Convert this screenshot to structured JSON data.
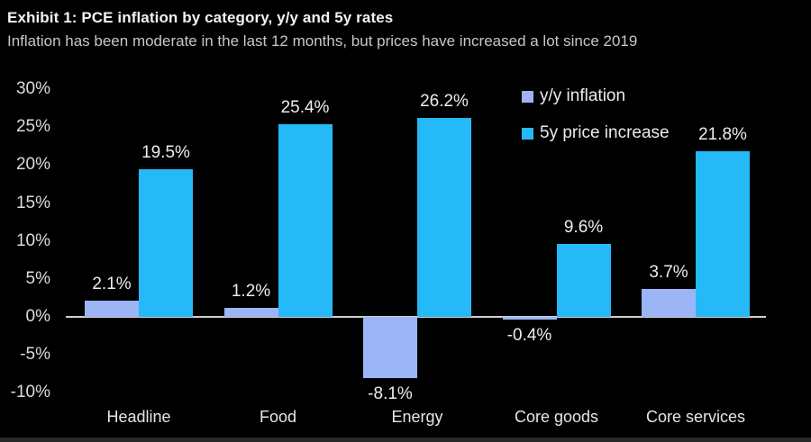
{
  "header": {
    "title": "Exhibit 1: PCE inflation by category, y/y and 5y rates",
    "subtitle": "Inflation has been moderate in the last 12 months, but prices have increased a lot since 2019"
  },
  "colors": {
    "background": "#000000",
    "yy_series": "#9cb5f7",
    "five_year_series": "#25b9f7",
    "axis_text": "#dcdcdc",
    "value_label_text": "#ededed",
    "zero_line": "#d0d0d0",
    "title_text": "#f2f2f2",
    "subtitle_text": "#c7c7c7"
  },
  "legend": {
    "items": [
      {
        "label": "y/y inflation",
        "color": "#9cb5f7",
        "swatch_icon": "square-swatch-icon"
      },
      {
        "label": "5y price increase",
        "color": "#25b9f7",
        "swatch_icon": "square-swatch-icon"
      }
    ]
  },
  "chart_data": {
    "type": "bar",
    "title": "Exhibit 1: PCE inflation by category, y/y and 5y rates",
    "subtitle": "Inflation has been moderate in the last 12 months, but prices have increased a lot since 2019",
    "categories": [
      "Headline",
      "Food",
      "Energy",
      "Core goods",
      "Core services"
    ],
    "series": [
      {
        "name": "y/y inflation",
        "color": "#9cb5f7",
        "values": [
          2.1,
          1.2,
          -8.1,
          -0.4,
          3.7
        ],
        "labels": [
          "2.1%",
          "1.2%",
          "-8.1%",
          "-0.4%",
          "3.7%"
        ]
      },
      {
        "name": "5y price increase",
        "color": "#25b9f7",
        "values": [
          19.5,
          25.4,
          26.2,
          9.6,
          21.8
        ],
        "labels": [
          "19.5%",
          "25.4%",
          "26.2%",
          "9.6%",
          "21.8%"
        ]
      }
    ],
    "xlabel": "",
    "ylabel": "",
    "ylim": [
      -10,
      30
    ],
    "y_ticks": [
      {
        "value": 30,
        "label": "30%"
      },
      {
        "value": 25,
        "label": "25%"
      },
      {
        "value": 20,
        "label": "20%"
      },
      {
        "value": 15,
        "label": "15%"
      },
      {
        "value": 10,
        "label": "10%"
      },
      {
        "value": 5,
        "label": "5%"
      },
      {
        "value": 0,
        "label": "0%"
      },
      {
        "value": -5,
        "label": "-5%"
      },
      {
        "value": -10,
        "label": "-10%"
      }
    ],
    "grid": false,
    "legend_position": "top-right",
    "value_labels_shown": true
  }
}
